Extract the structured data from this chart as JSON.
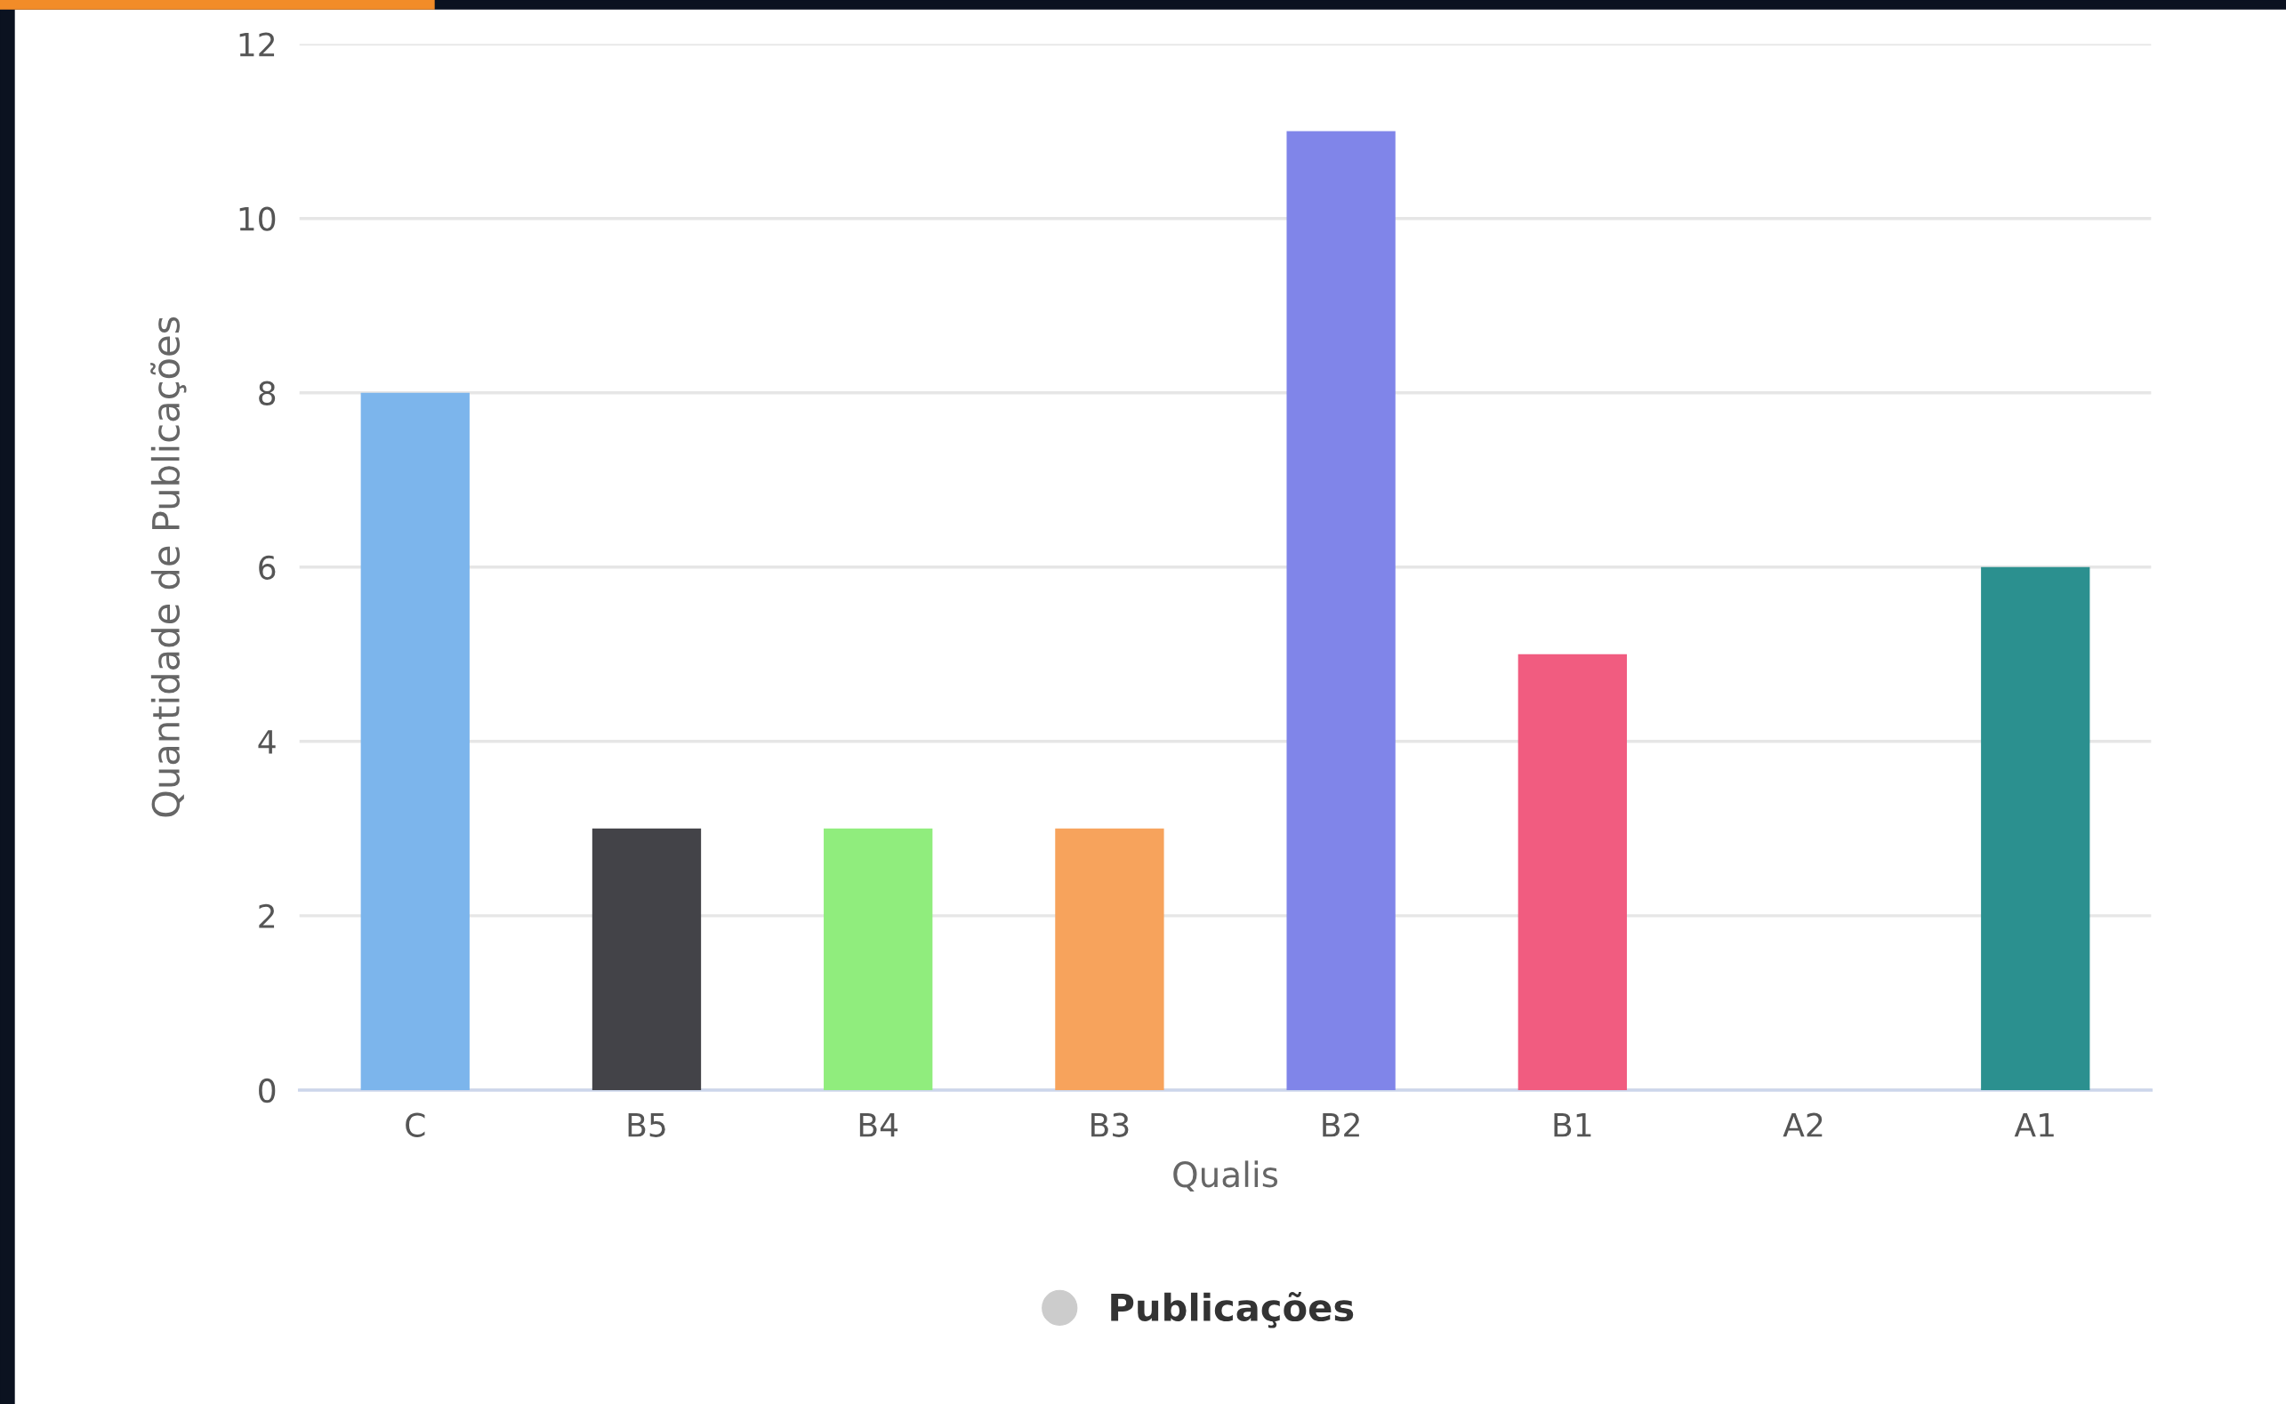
{
  "chart_data": {
    "type": "bar",
    "xlabel": "Qualis",
    "ylabel": "Quantidade de Publicações",
    "categories": [
      "C",
      "B5",
      "B4",
      "B3",
      "B2",
      "B1",
      "A2",
      "A1"
    ],
    "series": [
      {
        "name": "Publicações",
        "color": "#cccccc",
        "colors": [
          "#7cb5ec",
          "#434348",
          "#90ed7d",
          "#f7a35c",
          "#8085e9",
          "#f15c80",
          "#e4d354",
          "#2b908f"
        ],
        "values": [
          8,
          3,
          3,
          3,
          11,
          5,
          0,
          6
        ]
      }
    ],
    "ylim": [
      0,
      12
    ],
    "yticks": [
      0,
      2,
      4,
      6,
      8,
      10,
      12
    ],
    "grid": "y",
    "legend": "bottom"
  }
}
